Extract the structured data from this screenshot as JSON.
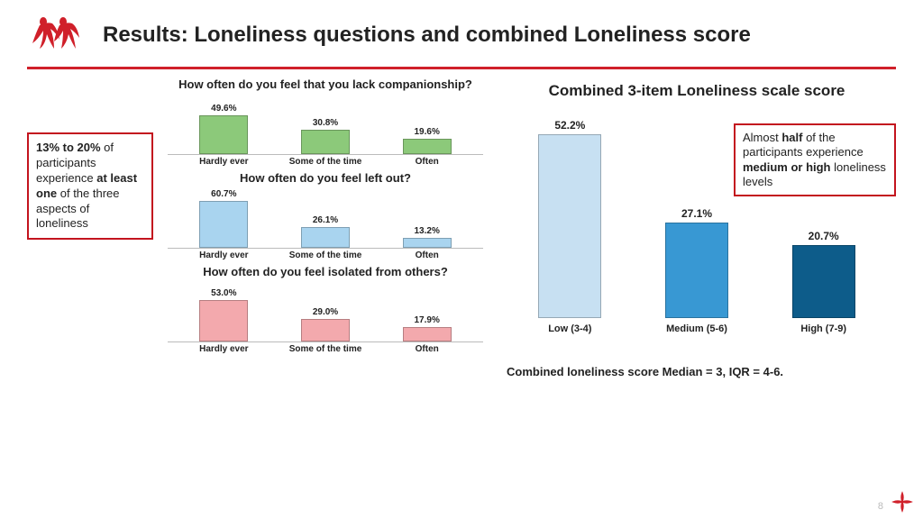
{
  "title": "Results: Loneliness questions and combined Loneliness score",
  "rule_color": "#d0202a",
  "left_callout": {
    "html": "<b>13% to 20%</b> of participants experience <b>at least one</b> of the three aspects of loneliness"
  },
  "mini_charts": [
    {
      "title": "How often do you feel that you lack companionship?",
      "bar_color": "#8cc97a",
      "ymax": 65,
      "categories": [
        "Hardly ever",
        "Some of the time",
        "Often"
      ],
      "values": [
        49.6,
        30.8,
        19.6
      ],
      "value_labels": [
        "49.6%",
        "30.8%",
        "19.6%"
      ]
    },
    {
      "title": "How often do you feel left out?",
      "bar_color": "#a9d4ef",
      "ymax": 65,
      "categories": [
        "Hardly ever",
        "Some of the time",
        "Often"
      ],
      "values": [
        60.7,
        26.1,
        13.2
      ],
      "value_labels": [
        "60.7%",
        "26.1%",
        "13.2%"
      ]
    },
    {
      "title": "How often do you feel isolated from others?",
      "bar_color": "#f3a9ad",
      "ymax": 65,
      "categories": [
        "Hardly ever",
        "Some of the time",
        "Often"
      ],
      "values": [
        53.0,
        29.0,
        17.9
      ],
      "value_labels": [
        "53.0%",
        "29.0%",
        "17.9%"
      ]
    }
  ],
  "big_chart": {
    "title": "Combined 3-item Loneliness scale score",
    "ymax": 55,
    "categories": [
      "Low (3-4)",
      "Medium (5-6)",
      "High (7-9)"
    ],
    "values": [
      52.2,
      27.1,
      20.7
    ],
    "value_labels": [
      "52.2%",
      "27.1%",
      "20.7%"
    ],
    "bar_colors": [
      "#c7e0f2",
      "#3898d3",
      "#0d5c8a"
    ]
  },
  "right_callout": {
    "html": "Almost <b>half</b> of the participants experience <b>medium or high</b> loneliness levels"
  },
  "footnote": "Combined loneliness score Median = 3, IQR = 4-6.",
  "page_number": "8"
}
